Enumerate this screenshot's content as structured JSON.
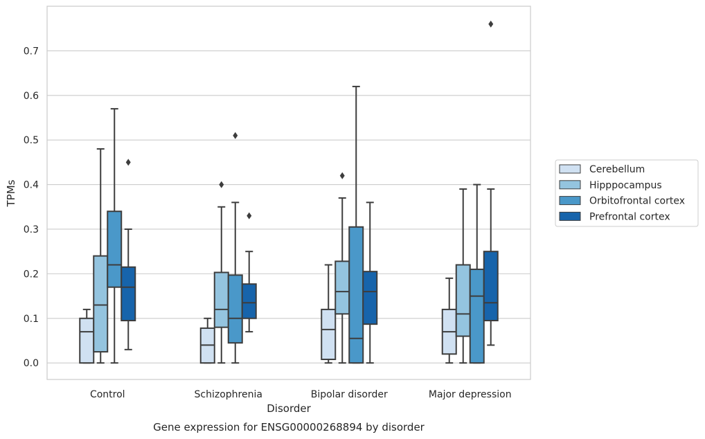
{
  "chart_data": {
    "type": "box",
    "xlabel": "Disorder",
    "ylabel": "TPMs",
    "caption": "Gene expression for ENSG00000268894 by disorder",
    "ylim": [
      -0.037,
      0.8
    ],
    "yticks": [
      "0.0",
      "0.1",
      "0.2",
      "0.3",
      "0.4",
      "0.5",
      "0.6",
      "0.7"
    ],
    "grid": "horizontal",
    "legend_position": "right",
    "categories": [
      "Control",
      "Schizophrenia",
      "Bipolar disorder",
      "Major depression"
    ],
    "series": [
      {
        "name": "Cerebellum",
        "color": "#d0e1f2",
        "boxes": [
          {
            "whislo": 0.0,
            "q1": 0.0,
            "med": 0.07,
            "q3": 0.1,
            "whishi": 0.12,
            "fliers": []
          },
          {
            "whislo": 0.0,
            "q1": 0.0,
            "med": 0.04,
            "q3": 0.078,
            "whishi": 0.1,
            "fliers": []
          },
          {
            "whislo": 0.0,
            "q1": 0.008,
            "med": 0.075,
            "q3": 0.12,
            "whishi": 0.22,
            "fliers": []
          },
          {
            "whislo": 0.0,
            "q1": 0.02,
            "med": 0.07,
            "q3": 0.12,
            "whishi": 0.19,
            "fliers": []
          }
        ]
      },
      {
        "name": "Hipppocampus",
        "color": "#94c4df",
        "boxes": [
          {
            "whislo": 0.0,
            "q1": 0.025,
            "med": 0.13,
            "q3": 0.24,
            "whishi": 0.48,
            "fliers": []
          },
          {
            "whislo": 0.0,
            "q1": 0.08,
            "med": 0.12,
            "q3": 0.203,
            "whishi": 0.35,
            "fliers": [
              0.4
            ]
          },
          {
            "whislo": 0.0,
            "q1": 0.11,
            "med": 0.16,
            "q3": 0.228,
            "whishi": 0.37,
            "fliers": [
              0.42
            ]
          },
          {
            "whislo": 0.0,
            "q1": 0.06,
            "med": 0.11,
            "q3": 0.22,
            "whishi": 0.39,
            "fliers": []
          }
        ]
      },
      {
        "name": "Orbitofrontal cortex",
        "color": "#4a98c9",
        "boxes": [
          {
            "whislo": 0.0,
            "q1": 0.17,
            "med": 0.22,
            "q3": 0.34,
            "whishi": 0.57,
            "fliers": []
          },
          {
            "whislo": 0.0,
            "q1": 0.045,
            "med": 0.1,
            "q3": 0.197,
            "whishi": 0.36,
            "fliers": [
              0.51
            ]
          },
          {
            "whislo": 0.0,
            "q1": 0.0,
            "med": 0.055,
            "q3": 0.305,
            "whishi": 0.62,
            "fliers": []
          },
          {
            "whislo": 0.0,
            "q1": 0.0,
            "med": 0.15,
            "q3": 0.21,
            "whishi": 0.4,
            "fliers": []
          }
        ]
      },
      {
        "name": "Prefrontal cortex",
        "color": "#1764ab",
        "boxes": [
          {
            "whislo": 0.03,
            "q1": 0.095,
            "med": 0.17,
            "q3": 0.215,
            "whishi": 0.3,
            "fliers": [
              0.45
            ]
          },
          {
            "whislo": 0.07,
            "q1": 0.1,
            "med": 0.135,
            "q3": 0.177,
            "whishi": 0.25,
            "fliers": [
              0.33
            ]
          },
          {
            "whislo": 0.0,
            "q1": 0.087,
            "med": 0.16,
            "q3": 0.205,
            "whishi": 0.36,
            "fliers": []
          },
          {
            "whislo": 0.04,
            "q1": 0.095,
            "med": 0.135,
            "q3": 0.25,
            "whishi": 0.39,
            "fliers": [
              0.76
            ]
          }
        ]
      }
    ]
  }
}
